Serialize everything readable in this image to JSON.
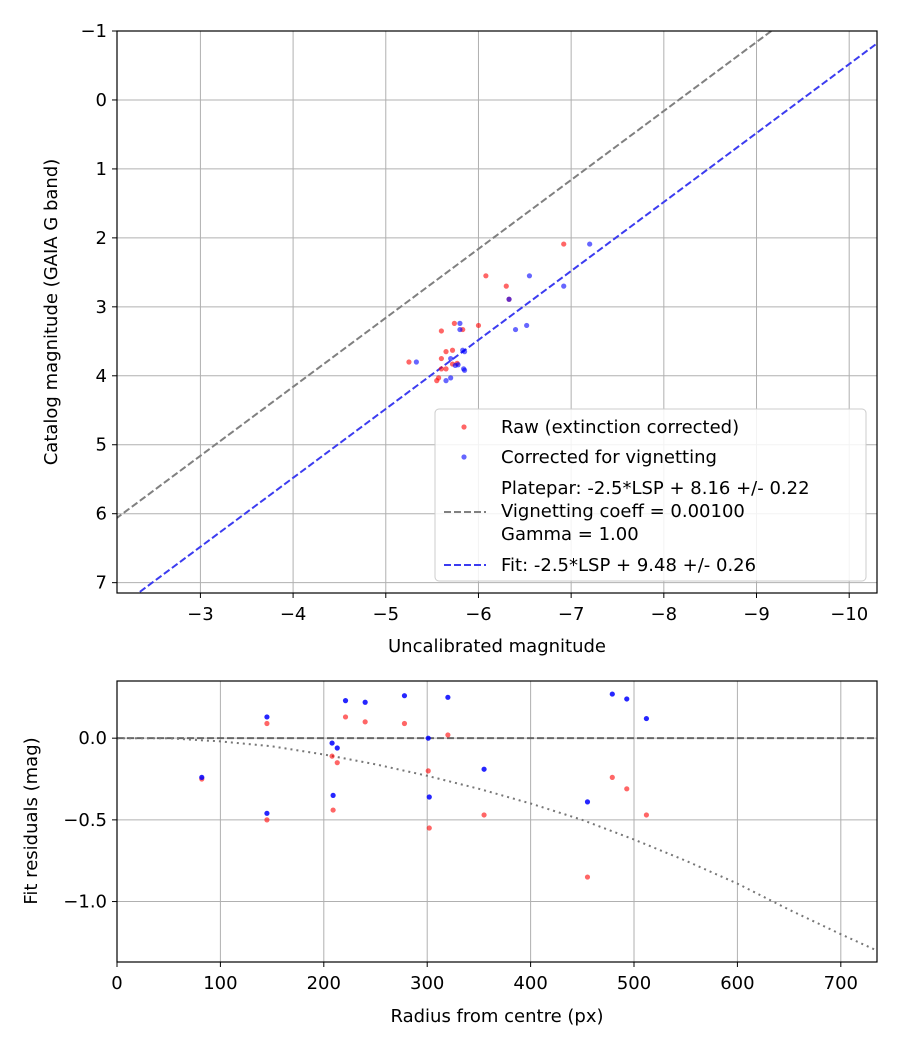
{
  "chart_data": [
    {
      "type": "scatter",
      "xlabel": "Uncalibrated magnitude",
      "ylabel": "Catalog magnitude (GAIA G band)",
      "xlim": [
        -2.1,
        -10.3
      ],
      "ylim": [
        7.15,
        -1.0
      ],
      "xticks": [
        -3,
        -4,
        -5,
        -6,
        -7,
        -8,
        -9,
        -10
      ],
      "xtick_labels": [
        "−3",
        "−4",
        "−5",
        "−6",
        "−7",
        "−8",
        "−9",
        "−10"
      ],
      "yticks": [
        -1,
        0,
        1,
        2,
        3,
        4,
        5,
        6,
        7
      ],
      "ytick_labels": [
        "−1",
        "0",
        "1",
        "2",
        "3",
        "4",
        "5",
        "6",
        "7"
      ],
      "grid": true,
      "legend_position": "lower-right",
      "series": [
        {
          "name": "Raw (extinction corrected)",
          "kind": "scatter",
          "color": "#ff0000",
          "points": [
            [
              -6.92,
              2.09
            ],
            [
              -6.08,
              2.55
            ],
            [
              -6.3,
              2.7
            ],
            [
              -6.33,
              2.89
            ],
            [
              -5.74,
              3.24
            ],
            [
              -5.83,
              3.33
            ],
            [
              -5.6,
              3.35
            ],
            [
              -6.0,
              3.27
            ],
            [
              -5.65,
              3.65
            ],
            [
              -5.72,
              3.63
            ],
            [
              -5.6,
              3.75
            ],
            [
              -5.25,
              3.8
            ],
            [
              -5.72,
              3.83
            ],
            [
              -5.77,
              3.82
            ],
            [
              -5.6,
              3.9
            ],
            [
              -5.65,
              3.9
            ],
            [
              -5.57,
              4.03
            ],
            [
              -5.55,
              4.07
            ]
          ]
        },
        {
          "name": "Corrected for vignetting",
          "kind": "scatter",
          "color": "#0000ff",
          "points": [
            [
              -7.2,
              2.09
            ],
            [
              -6.55,
              2.55
            ],
            [
              -6.92,
              2.7
            ],
            [
              -6.33,
              2.89
            ],
            [
              -5.8,
              3.24
            ],
            [
              -5.8,
              3.33
            ],
            [
              -6.52,
              3.27
            ],
            [
              -6.4,
              3.33
            ],
            [
              -5.85,
              3.65
            ],
            [
              -5.83,
              3.63
            ],
            [
              -5.7,
              3.75
            ],
            [
              -5.33,
              3.8
            ],
            [
              -5.75,
              3.85
            ],
            [
              -5.78,
              3.84
            ],
            [
              -5.84,
              3.9
            ],
            [
              -5.85,
              3.92
            ],
            [
              -5.7,
              4.03
            ],
            [
              -5.65,
              4.07
            ]
          ]
        },
        {
          "name": "Platepar: -2.5*LSP + 8.16 +/- 0.22\nVignetting coeff = 0.00100\nGamma = 1.00",
          "kind": "line",
          "style": "dashed",
          "color": "#808080",
          "slope": 1,
          "intercept": 8.16
        },
        {
          "name": "Fit: -2.5*LSP + 9.48 +/- 0.26",
          "kind": "line",
          "style": "dashed",
          "color": "#3c3cf0",
          "slope": 1,
          "intercept": 9.48
        }
      ]
    },
    {
      "type": "scatter",
      "xlabel": "Radius from centre (px)",
      "ylabel": "Fit residuals (mag)",
      "xlim": [
        0,
        735
      ],
      "ylim": [
        -1.37,
        0.35
      ],
      "xticks": [
        0,
        100,
        200,
        300,
        400,
        500,
        600,
        700
      ],
      "xtick_labels": [
        "0",
        "100",
        "200",
        "300",
        "400",
        "500",
        "600",
        "700"
      ],
      "yticks": [
        0.0,
        -0.5,
        -1.0
      ],
      "ytick_labels": [
        "0.0",
        "−0.5",
        "−1.0"
      ],
      "grid": true,
      "series": [
        {
          "kind": "scatter",
          "color": "#ff0000",
          "points": [
            [
              82,
              -0.25
            ],
            [
              145,
              0.09
            ],
            [
              145,
              -0.5
            ],
            [
              208,
              -0.11
            ],
            [
              209,
              -0.44
            ],
            [
              213,
              -0.15
            ],
            [
              221,
              0.13
            ],
            [
              240,
              0.1
            ],
            [
              278,
              0.09
            ],
            [
              301,
              -0.2
            ],
            [
              302,
              -0.55
            ],
            [
              320,
              0.02
            ],
            [
              355,
              -0.47
            ],
            [
              455,
              -0.85
            ],
            [
              479,
              -0.24
            ],
            [
              493,
              -0.31
            ],
            [
              512,
              -0.47
            ]
          ]
        },
        {
          "kind": "scatter",
          "color": "#0000ff",
          "points": [
            [
              82,
              -0.24
            ],
            [
              145,
              0.13
            ],
            [
              145,
              -0.46
            ],
            [
              208,
              -0.03
            ],
            [
              209,
              -0.35
            ],
            [
              213,
              -0.06
            ],
            [
              221,
              0.23
            ],
            [
              240,
              0.22
            ],
            [
              278,
              0.26
            ],
            [
              301,
              0.0
            ],
            [
              302,
              -0.36
            ],
            [
              320,
              0.25
            ],
            [
              355,
              -0.19
            ],
            [
              455,
              -0.39
            ],
            [
              479,
              0.27
            ],
            [
              493,
              0.24
            ],
            [
              512,
              0.12
            ]
          ]
        },
        {
          "kind": "line",
          "style": "dashed",
          "color": "#555555",
          "y": 0
        },
        {
          "kind": "curve",
          "style": "dotted",
          "color": "#777777",
          "function": "-2.5*log10(1 + (0.001*r)^2)... approx",
          "points": [
            [
              0,
              0
            ],
            [
              50,
              0.0
            ],
            [
              100,
              -0.02
            ],
            [
              150,
              -0.05
            ],
            [
              200,
              -0.1
            ],
            [
              250,
              -0.16
            ],
            [
              300,
              -0.23
            ],
            [
              350,
              -0.31
            ],
            [
              400,
              -0.4
            ],
            [
              450,
              -0.5
            ],
            [
              500,
              -0.62
            ],
            [
              550,
              -0.75
            ],
            [
              600,
              -0.89
            ],
            [
              650,
              -1.05
            ],
            [
              700,
              -1.2
            ],
            [
              735,
              -1.3
            ]
          ]
        }
      ]
    }
  ]
}
